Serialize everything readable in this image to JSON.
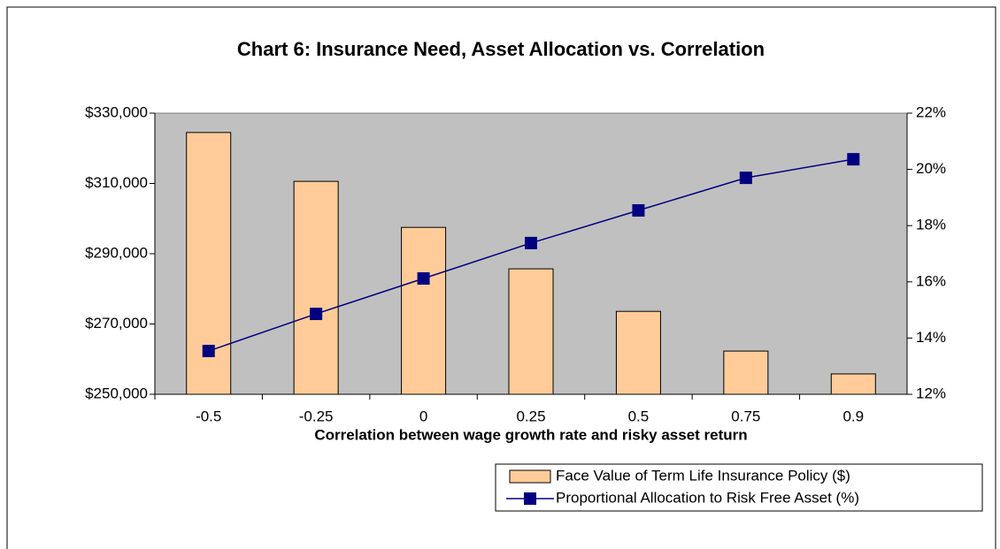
{
  "chart_data": {
    "type": "bar",
    "title": "Chart 6: Insurance Need, Asset Allocation vs. Correlation",
    "xlabel": "Correlation between wage growth rate and risky asset return",
    "categories": [
      "-0.5",
      "-0.25",
      "0",
      "0.25",
      "0.5",
      "0.75",
      "0.9"
    ],
    "series": [
      {
        "name": "Face Value of Term Life Insurance Policy ($)",
        "type": "bar",
        "color": "#ffcc99",
        "values": [
          324500,
          310600,
          297500,
          285700,
          273600,
          262300,
          255800
        ]
      },
      {
        "name": "Proportional Allocation to Risk Free Asset (%)",
        "type": "line",
        "color": "#000080",
        "axis": "y2",
        "values": [
          13.54,
          14.86,
          16.12,
          17.38,
          18.54,
          19.7,
          20.36
        ]
      }
    ],
    "ylim": [
      250000,
      330000
    ],
    "yticks": [
      {
        "value": 250000,
        "label": "$250,000"
      },
      {
        "value": 270000,
        "label": "$270,000"
      },
      {
        "value": 290000,
        "label": "$290,000"
      },
      {
        "value": 310000,
        "label": "$310,000"
      },
      {
        "value": 330000,
        "label": "$330,000"
      }
    ],
    "y2lim": [
      12,
      22
    ],
    "y2ticks": [
      {
        "value": 12,
        "label": "12%"
      },
      {
        "value": 14,
        "label": "14%"
      },
      {
        "value": 16,
        "label": "16%"
      },
      {
        "value": 18,
        "label": "18%"
      },
      {
        "value": 20,
        "label": "20%"
      },
      {
        "value": 22,
        "label": "22%"
      }
    ],
    "plot_background": "#c0c0c0",
    "legend": "bottom-right"
  }
}
